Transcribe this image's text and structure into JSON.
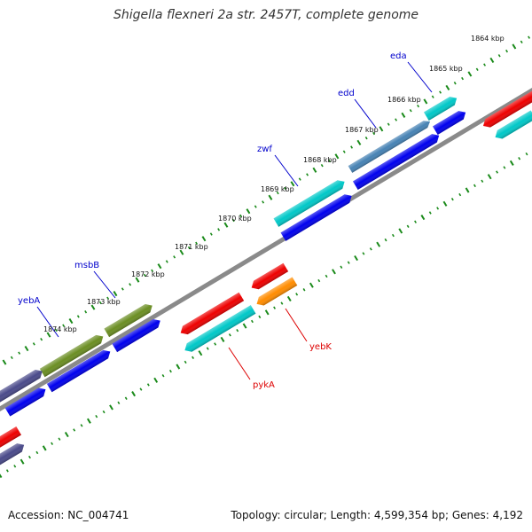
{
  "title": "Shigella flexneri 2a str. 2457T, complete genome",
  "footer": {
    "accession": "Accession: NC_004741",
    "stats": "Topology: circular; Length: 4,599,354 bp; Genes: 4,192"
  },
  "colors": {
    "backbone": "#8a8a8a",
    "ruler": "#1a8a1a",
    "plus_label": "#0000cc",
    "minus_label": "#dd0000",
    "gene_blue": "#0000ee",
    "gene_cyan": "#00c8c8",
    "gene_olive": "#6b8e23",
    "gene_slate": "#4a4a8a",
    "gene_red": "#ee0000",
    "gene_orange": "#ff8c00",
    "gene_steel": "#4682b4"
  },
  "ruler_ticks": [
    "1864 kbp",
    "1865 kbp",
    "1866 kbp",
    "1867 kbp",
    "1868 kbp",
    "1869 kbp",
    "1870 kbp",
    "1871 kbp",
    "1872 kbp",
    "1873 kbp",
    "1874 kbp"
  ],
  "gene_labels": [
    {
      "text": "eda",
      "strand": "plus"
    },
    {
      "text": "edd",
      "strand": "plus"
    },
    {
      "text": "zwf",
      "strand": "plus"
    },
    {
      "text": "msbB",
      "strand": "plus"
    },
    {
      "text": "yebA",
      "strand": "plus"
    },
    {
      "text": "yebK",
      "strand": "minus"
    },
    {
      "text": "pykA",
      "strand": "minus"
    }
  ]
}
